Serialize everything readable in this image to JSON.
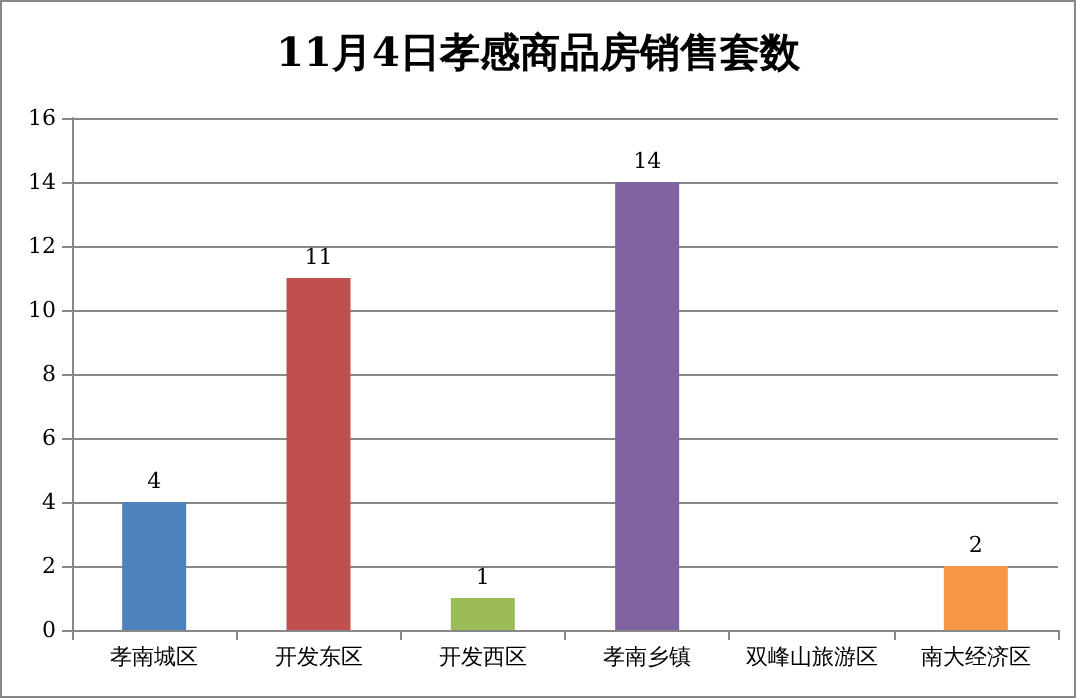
{
  "chart_data": {
    "type": "bar",
    "title": "11月4日孝感商品房销售套数",
    "categories": [
      "孝南城区",
      "开发东区",
      "开发西区",
      "孝南乡镇",
      "双峰山旅游区",
      "南大经济区"
    ],
    "values": [
      4,
      11,
      1,
      14,
      0,
      2
    ],
    "colors": [
      "#4f81bd",
      "#c0504d",
      "#9bbb59",
      "#8064a2",
      "#4bacc6",
      "#f79646"
    ],
    "value_labels": [
      "4",
      "11",
      "1",
      "14",
      null,
      "2"
    ],
    "ylim": [
      0,
      16
    ],
    "yticks": [
      0,
      2,
      4,
      6,
      8,
      10,
      12,
      14,
      16
    ],
    "grid": "y"
  }
}
